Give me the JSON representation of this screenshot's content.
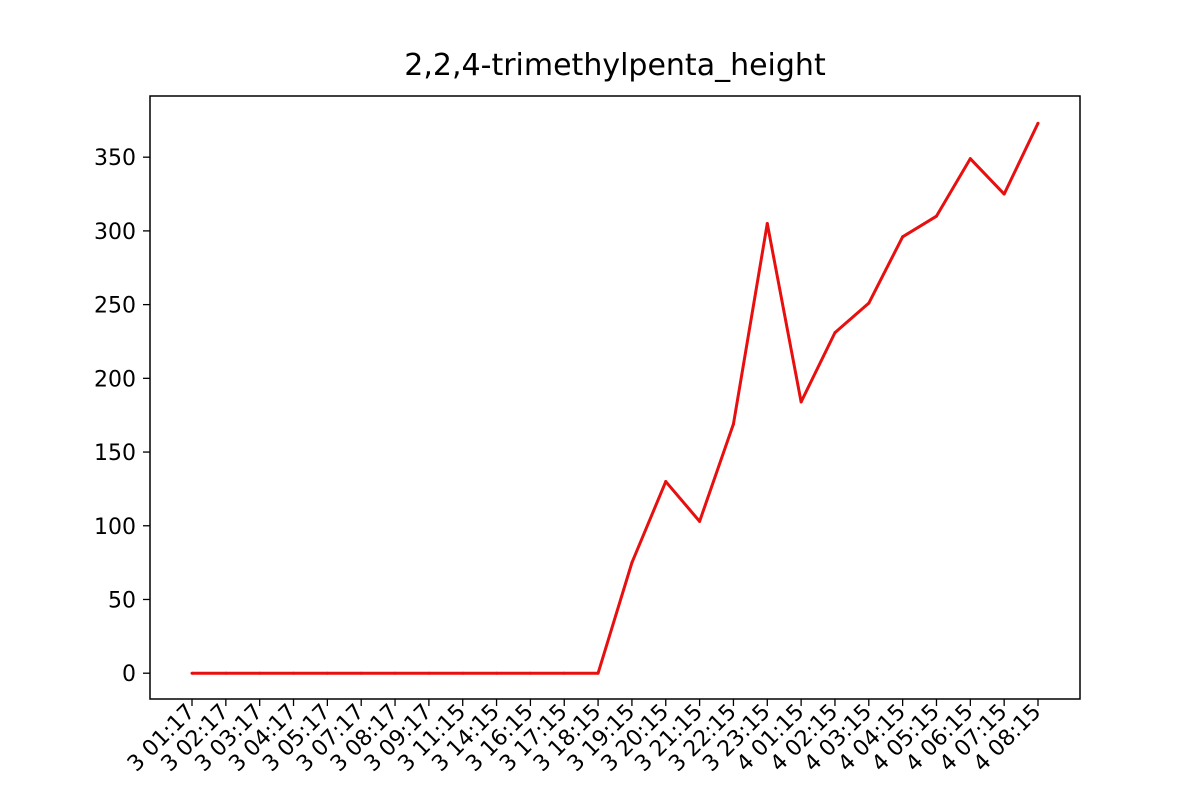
{
  "chart_data": {
    "type": "line",
    "title": "2,2,4-trimethylpenta_height",
    "xlabel": "",
    "ylabel": "",
    "categories": [
      "3 01:17",
      "3 02:17",
      "3 03:17",
      "3 04:17",
      "3 05:17",
      "3 07:17",
      "3 08:17",
      "3 09:17",
      "3 11:15",
      "3 14:15",
      "3 16:15",
      "3 17:15",
      "3 18:15",
      "3 19:15",
      "3 20:15",
      "3 21:15",
      "3 22:15",
      "3 23:15",
      "4 01:15",
      "4 02:15",
      "4 03:15",
      "4 04:15",
      "4 05:15",
      "4 06:15",
      "4 07:15",
      "4 08:15"
    ],
    "series": [
      {
        "values": [
          0,
          0,
          0,
          0,
          0,
          0,
          0,
          0,
          0,
          0,
          0,
          0,
          0,
          75,
          130,
          103,
          169,
          305,
          184,
          231,
          251,
          296,
          310,
          349,
          325,
          373
        ]
      }
    ],
    "ylim": [
      -17.5,
      391.5
    ],
    "yticks": [
      0,
      50,
      100,
      150,
      200,
      250,
      300,
      350
    ],
    "line_color": "#e80f0f",
    "grid": false,
    "legend": "none"
  }
}
